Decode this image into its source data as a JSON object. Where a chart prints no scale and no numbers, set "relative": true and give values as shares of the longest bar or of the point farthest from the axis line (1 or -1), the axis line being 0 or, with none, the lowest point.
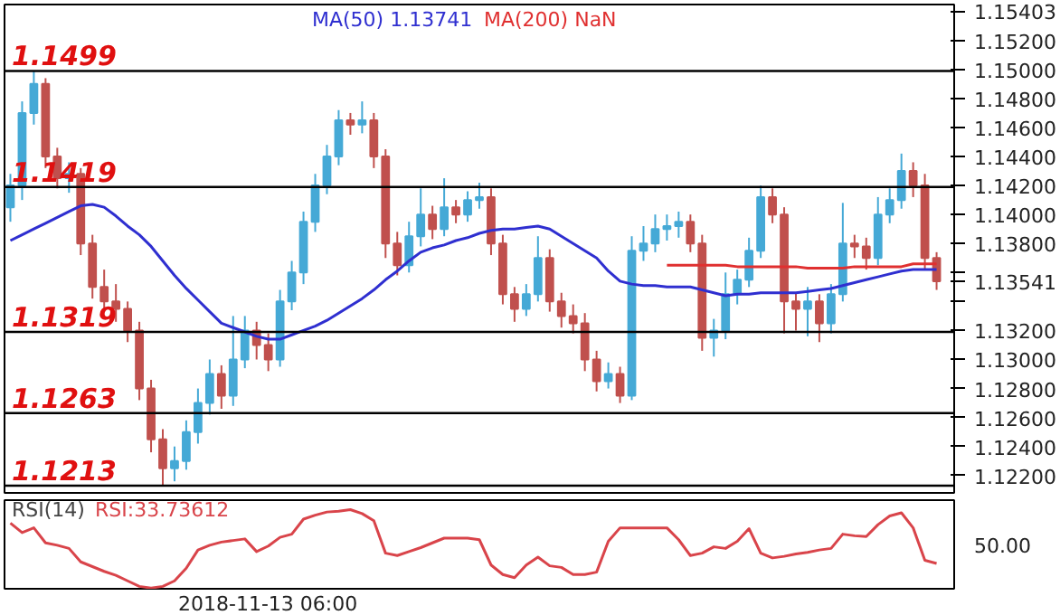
{
  "chart_data": [
    {
      "type": "candlestick",
      "ylim": [
        1.1208,
        1.15448
      ],
      "yticks": [
        {
          "value": 1.122,
          "label": "1.12200"
        },
        {
          "value": 1.124,
          "label": "1.12400"
        },
        {
          "value": 1.126,
          "label": "1.12600"
        },
        {
          "value": 1.128,
          "label": "1.12800"
        },
        {
          "value": 1.13,
          "label": "1.13000"
        },
        {
          "value": 1.132,
          "label": "1.13200"
        },
        {
          "value": 1.134,
          "label": null
        },
        {
          "value": 1.13541,
          "label": "1.13541"
        },
        {
          "value": 1.136,
          "label": null
        },
        {
          "value": 1.138,
          "label": "1.13800"
        },
        {
          "value": 1.14,
          "label": "1.14000"
        },
        {
          "value": 1.142,
          "label": "1.14200"
        },
        {
          "value": 1.144,
          "label": "1.14400"
        },
        {
          "value": 1.146,
          "label": "1.14600"
        },
        {
          "value": 1.148,
          "label": "1.14800"
        },
        {
          "value": 1.15,
          "label": "1.15000"
        },
        {
          "value": 1.152,
          "label": "1.15200"
        },
        {
          "value": 1.15403,
          "label": "1.15403"
        }
      ],
      "tick_labels": "y",
      "categories": [
        null,
        null,
        null,
        null,
        null,
        null,
        null,
        null,
        null,
        null,
        null,
        null,
        null,
        null,
        null,
        null,
        null,
        null,
        null,
        null,
        null,
        null,
        null,
        null,
        null,
        null,
        null,
        null,
        null,
        null,
        null,
        null,
        null,
        null,
        null,
        null,
        null,
        null,
        null,
        null,
        null,
        null,
        null,
        null,
        null,
        null,
        null,
        null,
        null,
        null,
        null,
        null,
        null,
        null,
        null,
        null,
        null,
        null,
        null,
        null,
        null,
        null,
        null,
        null,
        null,
        null,
        null,
        null,
        null,
        null,
        null,
        null,
        null,
        null,
        null,
        null,
        null,
        null,
        null,
        null
      ],
      "ohlc": [
        [
          1.1405,
          1.1428,
          1.1395,
          1.142
        ],
        [
          1.142,
          1.1478,
          1.141,
          1.147
        ],
        [
          1.147,
          1.1499,
          1.1462,
          1.149
        ],
        [
          1.149,
          1.1494,
          1.1432,
          1.144
        ],
        [
          1.144,
          1.1446,
          1.1418,
          1.1425
        ],
        [
          1.1425,
          1.1436,
          1.1415,
          1.1428
        ],
        [
          1.1428,
          1.1432,
          1.1372,
          1.138
        ],
        [
          1.138,
          1.1386,
          1.1342,
          1.135
        ],
        [
          1.135,
          1.1362,
          1.1334,
          1.134
        ],
        [
          1.134,
          1.1352,
          1.1326,
          1.1335
        ],
        [
          1.1335,
          1.134,
          1.1312,
          1.132
        ],
        [
          1.132,
          1.1326,
          1.1272,
          1.128
        ],
        [
          1.128,
          1.1286,
          1.1236,
          1.1245
        ],
        [
          1.1245,
          1.1252,
          1.1213,
          1.1225
        ],
        [
          1.1225,
          1.124,
          1.1216,
          1.123
        ],
        [
          1.123,
          1.1258,
          1.1224,
          1.125
        ],
        [
          1.125,
          1.128,
          1.1242,
          1.127
        ],
        [
          1.127,
          1.13,
          1.1262,
          1.129
        ],
        [
          1.129,
          1.1296,
          1.1266,
          1.1275
        ],
        [
          1.1275,
          1.133,
          1.1268,
          1.13
        ],
        [
          1.13,
          1.133,
          1.1294,
          1.132
        ],
        [
          1.132,
          1.1326,
          1.13,
          1.131
        ],
        [
          1.131,
          1.1318,
          1.1292,
          1.13
        ],
        [
          1.13,
          1.1348,
          1.1295,
          1.134
        ],
        [
          1.134,
          1.1368,
          1.1334,
          1.136
        ],
        [
          1.136,
          1.1402,
          1.1352,
          1.1395
        ],
        [
          1.1395,
          1.1428,
          1.1388,
          1.142
        ],
        [
          1.142,
          1.1448,
          1.1414,
          1.144
        ],
        [
          1.144,
          1.1472,
          1.1434,
          1.1465
        ],
        [
          1.1465,
          1.147,
          1.1455,
          1.1462
        ],
        [
          1.1462,
          1.1478,
          1.1456,
          1.1465
        ],
        [
          1.1465,
          1.147,
          1.1432,
          1.144
        ],
        [
          1.144,
          1.1445,
          1.137,
          1.138
        ],
        [
          1.138,
          1.1388,
          1.1358,
          1.1365
        ],
        [
          1.1365,
          1.1395,
          1.136,
          1.1385
        ],
        [
          1.1385,
          1.1418,
          1.1378,
          1.14
        ],
        [
          1.14,
          1.1406,
          1.1383,
          1.139
        ],
        [
          1.139,
          1.1425,
          1.1385,
          1.1405
        ],
        [
          1.1405,
          1.141,
          1.1394,
          1.14
        ],
        [
          1.14,
          1.1416,
          1.1395,
          1.141
        ],
        [
          1.141,
          1.1422,
          1.1404,
          1.1412
        ],
        [
          1.1412,
          1.1418,
          1.1372,
          1.138
        ],
        [
          1.138,
          1.1386,
          1.1338,
          1.1345
        ],
        [
          1.1345,
          1.135,
          1.1326,
          1.1335
        ],
        [
          1.1335,
          1.1352,
          1.133,
          1.1345
        ],
        [
          1.1345,
          1.1385,
          1.134,
          1.137
        ],
        [
          1.137,
          1.1376,
          1.1333,
          1.134
        ],
        [
          1.134,
          1.1346,
          1.1322,
          1.133
        ],
        [
          1.133,
          1.1338,
          1.1318,
          1.1325
        ],
        [
          1.1325,
          1.1332,
          1.1292,
          1.13
        ],
        [
          1.13,
          1.1306,
          1.1278,
          1.1285
        ],
        [
          1.1285,
          1.1298,
          1.128,
          1.129
        ],
        [
          1.129,
          1.1295,
          1.127,
          1.1275
        ],
        [
          1.1275,
          1.1385,
          1.1272,
          1.1375
        ],
        [
          1.1375,
          1.1392,
          1.1368,
          1.138
        ],
        [
          1.138,
          1.14,
          1.1374,
          1.139
        ],
        [
          1.139,
          1.14,
          1.1382,
          1.1392
        ],
        [
          1.1392,
          1.1402,
          1.1384,
          1.1395
        ],
        [
          1.1395,
          1.14,
          1.1374,
          1.138
        ],
        [
          1.138,
          1.1386,
          1.1306,
          1.1315
        ],
        [
          1.1315,
          1.1328,
          1.1302,
          1.132
        ],
        [
          1.132,
          1.136,
          1.1314,
          1.1345
        ],
        [
          1.1345,
          1.1362,
          1.1338,
          1.1355
        ],
        [
          1.1355,
          1.1384,
          1.135,
          1.1375
        ],
        [
          1.1375,
          1.142,
          1.137,
          1.1412
        ],
        [
          1.1412,
          1.1418,
          1.1394,
          1.14
        ],
        [
          1.14,
          1.1405,
          1.1318,
          1.134
        ],
        [
          1.134,
          1.1346,
          1.132,
          1.1335
        ],
        [
          1.1335,
          1.135,
          1.1316,
          1.134
        ],
        [
          1.134,
          1.1345,
          1.1312,
          1.1325
        ],
        [
          1.1325,
          1.1352,
          1.1318,
          1.1345
        ],
        [
          1.1345,
          1.1408,
          1.134,
          1.138
        ],
        [
          1.138,
          1.1386,
          1.137,
          1.1378
        ],
        [
          1.1378,
          1.1384,
          1.1362,
          1.137
        ],
        [
          1.137,
          1.1412,
          1.1365,
          1.14
        ],
        [
          1.14,
          1.1418,
          1.1394,
          1.141
        ],
        [
          1.141,
          1.1442,
          1.1404,
          1.143
        ],
        [
          1.143,
          1.1436,
          1.1412,
          1.142
        ],
        [
          1.142,
          1.1428,
          1.1362,
          1.137
        ],
        [
          1.137,
          1.1374,
          1.1348,
          1.1354
        ]
      ],
      "series": [
        {
          "name": "MA(50) 1.13741",
          "type": "line",
          "color": "#2f2fd0",
          "values": [
            1.1382,
            1.1386,
            1.139,
            1.1394,
            1.1398,
            1.1402,
            1.1406,
            1.1407,
            1.1405,
            1.1399,
            1.1392,
            1.1386,
            1.1378,
            1.1368,
            1.1358,
            1.1349,
            1.1341,
            1.1333,
            1.1325,
            1.1322,
            1.1319,
            1.1316,
            1.1314,
            1.1314,
            1.1317,
            1.132,
            1.1323,
            1.1327,
            1.1332,
            1.1337,
            1.1342,
            1.1348,
            1.1355,
            1.1361,
            1.1368,
            1.1374,
            1.1377,
            1.1379,
            1.1382,
            1.1384,
            1.1387,
            1.1389,
            1.139,
            1.139,
            1.1391,
            1.1392,
            1.139,
            1.1385,
            1.138,
            1.1375,
            1.137,
            1.1361,
            1.1354,
            1.1352,
            1.1351,
            1.1351,
            1.135,
            1.135,
            1.135,
            1.1348,
            1.1346,
            1.1344,
            1.1345,
            1.1345,
            1.1346,
            1.1346,
            1.1346,
            1.1346,
            1.1347,
            1.1348,
            1.1349,
            1.1351,
            1.1353,
            1.1355,
            1.1357,
            1.1359,
            1.1361,
            1.1362,
            1.1362,
            1.1362
          ]
        },
        {
          "name": "MA(200) NaN",
          "type": "line",
          "color": "#e03030",
          "values": [
            null,
            null,
            null,
            null,
            null,
            null,
            null,
            null,
            null,
            null,
            null,
            null,
            null,
            null,
            null,
            null,
            null,
            null,
            null,
            null,
            null,
            null,
            null,
            null,
            null,
            null,
            null,
            null,
            null,
            null,
            null,
            null,
            null,
            null,
            null,
            null,
            null,
            null,
            null,
            null,
            null,
            null,
            null,
            null,
            null,
            null,
            null,
            null,
            null,
            null,
            null,
            null,
            null,
            null,
            null,
            null,
            1.1365,
            1.1365,
            1.1365,
            1.1365,
            1.1365,
            1.1365,
            1.1364,
            1.1364,
            1.1364,
            1.1364,
            1.1364,
            1.1364,
            1.1363,
            1.1363,
            1.1363,
            1.1363,
            1.1364,
            1.1364,
            1.1364,
            1.1364,
            1.1364,
            1.1366,
            1.1366,
            1.1366
          ]
        }
      ],
      "ref_lines": [
        {
          "axis": "y",
          "value": 1.1499,
          "label": "1.1499",
          "color": "#000000"
        },
        {
          "axis": "y",
          "value": 1.1419,
          "label": "1.1419",
          "color": "#000000"
        },
        {
          "axis": "y",
          "value": 1.1319,
          "label": "1.1319",
          "color": "#000000"
        },
        {
          "axis": "y",
          "value": 1.1263,
          "label": "1.1263",
          "color": "#000000"
        },
        {
          "axis": "y",
          "value": 1.1213,
          "label": "1.1213",
          "color": "#000000"
        }
      ]
    },
    {
      "type": "line",
      "relative": true,
      "title": "RSI(14)",
      "tick_labels": false,
      "categories": [
        null,
        null,
        null,
        null,
        null,
        null,
        null,
        null,
        null,
        null,
        null,
        null,
        null,
        null,
        null,
        null,
        null,
        null,
        null,
        null,
        null,
        null,
        null,
        null,
        null,
        null,
        null,
        null,
        null,
        null,
        null,
        null,
        null,
        null,
        null,
        null,
        null,
        null,
        null,
        null,
        null,
        null,
        null,
        null,
        null,
        null,
        null,
        null,
        null,
        null,
        null,
        null,
        null,
        null,
        null,
        null,
        null,
        null,
        null,
        null,
        null,
        null,
        null,
        null,
        null,
        null,
        null,
        null,
        null,
        null,
        null,
        null,
        null,
        null,
        null,
        null,
        null,
        null,
        null,
        null
      ],
      "series": [
        {
          "name": "RSI:33.73612",
          "color": "#d9444a",
          "values": [
            0.83,
            0.71,
            0.77,
            0.58,
            0.55,
            0.51,
            0.34,
            0.28,
            0.22,
            0.17,
            0.1,
            0.03,
            0.01,
            0.03,
            0.1,
            0.26,
            0.49,
            0.55,
            0.59,
            0.61,
            0.63,
            0.47,
            0.54,
            0.65,
            0.69,
            0.88,
            0.93,
            0.97,
            0.98,
            1,
            0.95,
            0.86,
            0.45,
            0.42,
            0.47,
            0.52,
            0.58,
            0.64,
            0.64,
            0.64,
            0.62,
            0.3,
            0.18,
            0.14,
            0.3,
            0.4,
            0.29,
            0.27,
            0.18,
            0.18,
            0.21,
            0.6,
            0.77,
            0.77,
            0.77,
            0.77,
            0.77,
            0.62,
            0.42,
            0.45,
            0.53,
            0.51,
            0.6,
            0.76,
            0.45,
            0.39,
            0.41,
            0.44,
            0.46,
            0.49,
            0.51,
            0.69,
            0.67,
            0.66,
            0.81,
            0.92,
            0.96,
            0.77,
            0.36,
            0.32
          ]
        }
      ],
      "annotations": [
        "50.00",
        "2018-11-13 06:00"
      ]
    }
  ]
}
